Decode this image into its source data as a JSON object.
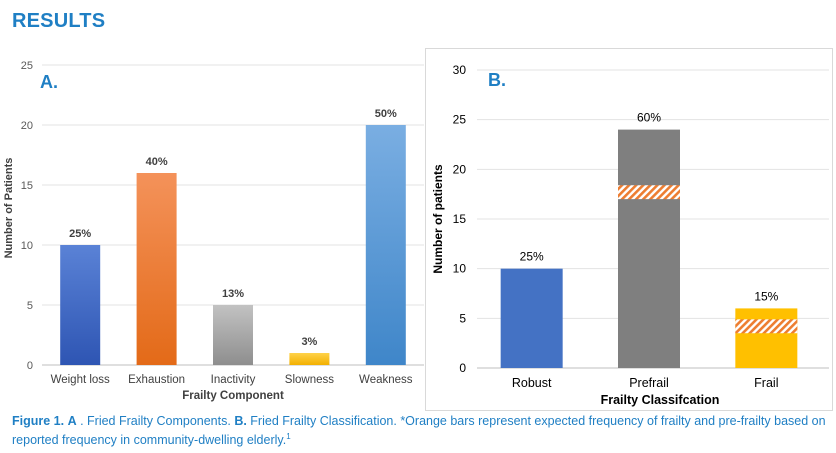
{
  "heading": "RESULTS",
  "chart_data": [
    {
      "type": "bar",
      "panel_label": "A.",
      "categories": [
        "Weight loss",
        "Exhaustion",
        "Inactivity",
        "Slowness",
        "Weakness"
      ],
      "values": [
        10,
        16,
        5,
        1,
        20
      ],
      "data_labels": [
        "25%",
        "40%",
        "13%",
        "3%",
        "50%"
      ],
      "colors": [
        "#3b66c4",
        "#ee7428",
        "#a6a6a6",
        "#ffc000",
        "#5b9bd5"
      ],
      "xlabel": "Frailty Component",
      "ylabel": "Number of Patients",
      "ylim": [
        0,
        25
      ],
      "yticks": [
        0,
        5,
        10,
        15,
        20,
        25
      ],
      "grid": true
    },
    {
      "type": "bar",
      "panel_label": "B.",
      "categories": [
        "Robust",
        "Prefrail",
        "Frail"
      ],
      "values": [
        10,
        24,
        6
      ],
      "data_labels": [
        "25%",
        "60%",
        "15%"
      ],
      "colors": [
        "#4472c4",
        "#7f7f7f",
        "#ffc000"
      ],
      "expected_markers": [
        null,
        17.7,
        4.2
      ],
      "marker_color": "#ed7d31",
      "xlabel": "Frailty Classifcation",
      "ylabel": "Number of patients",
      "ylim": [
        0,
        30
      ],
      "yticks": [
        0,
        5,
        10,
        15,
        20,
        25,
        30
      ],
      "grid": true
    }
  ],
  "caption": {
    "fig": "Figure 1.",
    "a": "A",
    "t1": " . Fried Frailty Components. ",
    "b": "B.",
    "t2": " Fried Frailty Classification. *Orange bars represent expected frequency of frailty and pre-frailty based on reported frequency in community-dwelling elderly.",
    "sup": "1"
  }
}
